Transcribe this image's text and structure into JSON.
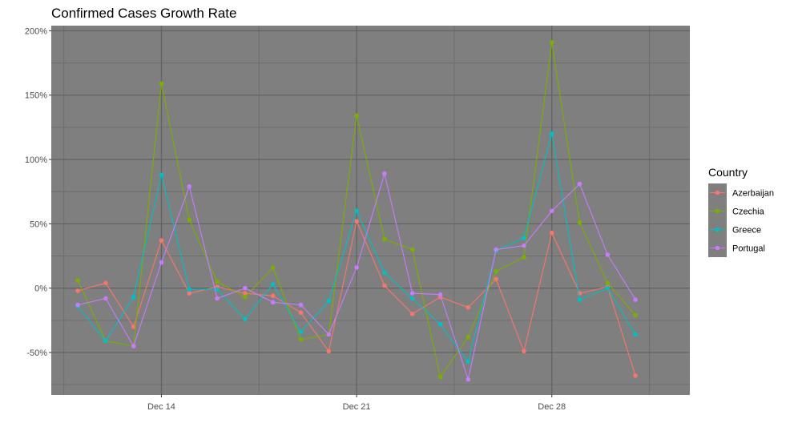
{
  "chart_data": {
    "type": "line",
    "title": "Confirmed Cases Growth Rate",
    "xlabel": "",
    "ylabel": "",
    "x": [
      "Dec 11",
      "Dec 12",
      "Dec 13",
      "Dec 14",
      "Dec 15",
      "Dec 16",
      "Dec 17",
      "Dec 18",
      "Dec 19",
      "Dec 20",
      "Dec 21",
      "Dec 22",
      "Dec 23",
      "Dec 24",
      "Dec 25",
      "Dec 26",
      "Dec 27",
      "Dec 28",
      "Dec 29",
      "Dec 30",
      "Dec 31",
      "Jan 1"
    ],
    "x_ticks": [
      {
        "index": 3,
        "label": "Dec 14"
      },
      {
        "index": 10,
        "label": "Dec 21"
      },
      {
        "index": 17,
        "label": "Dec 28"
      }
    ],
    "y_ticks": [
      {
        "value": -50,
        "label": "-50%"
      },
      {
        "value": 0,
        "label": "0%"
      },
      {
        "value": 50,
        "label": "50%"
      },
      {
        "value": 100,
        "label": "100%"
      },
      {
        "value": 150,
        "label": "150%"
      },
      {
        "value": 200,
        "label": "200%"
      }
    ],
    "ylim": [
      -83,
      204
    ],
    "xlim": [
      -0.95,
      21.95
    ],
    "panel_background": "#7f7f7f",
    "grid": true,
    "legend": {
      "title": "Country",
      "position": "right"
    },
    "series": [
      {
        "name": "Azerbaijan",
        "color": "#F8766D",
        "values": [
          -2,
          4,
          -30,
          37,
          -4,
          1,
          -4,
          -6,
          -19,
          -49,
          52,
          2,
          -20,
          -7,
          -15,
          7,
          -49,
          43,
          -4,
          1,
          -68,
          null
        ]
      },
      {
        "name": "Czechia",
        "color": "#7CAE00",
        "values": [
          6,
          -41,
          -45,
          159,
          53,
          5,
          -7,
          16,
          -40,
          -36,
          134,
          38,
          30,
          -69,
          -38,
          13,
          24,
          191,
          51,
          4,
          -21,
          null
        ]
      },
      {
        "name": "Greece",
        "color": "#00BFC4",
        "values": [
          -14,
          -41,
          -7,
          88,
          -1,
          -1,
          -24,
          3,
          -34,
          -10,
          60,
          12,
          -8,
          -28,
          -57,
          29,
          39,
          120,
          -9,
          0,
          -36,
          null
        ]
      },
      {
        "name": "Portugal",
        "color": "#C77CFF",
        "values": [
          -13,
          -8,
          -45,
          20,
          79,
          -8,
          0,
          -11,
          -13,
          -36,
          16,
          89,
          -4,
          -5,
          -71,
          30,
          33,
          60,
          81,
          26,
          -9,
          null
        ]
      }
    ]
  }
}
